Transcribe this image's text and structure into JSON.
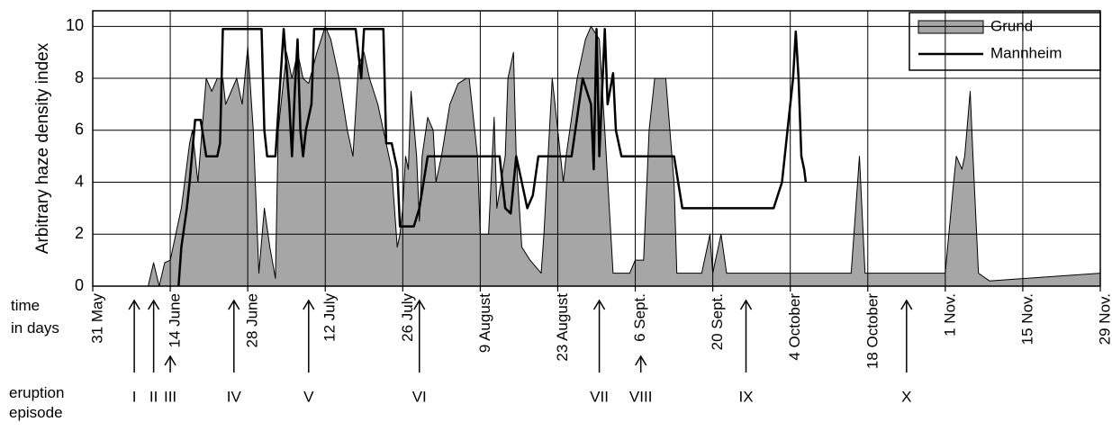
{
  "chart_data": {
    "type": "area_line",
    "ylabel": "Arbitrary haze density index",
    "xlabel": "time in days",
    "xlim": [
      0,
      182
    ],
    "ylim": [
      0,
      10.6
    ],
    "yticks": [
      0,
      2,
      4,
      6,
      8,
      10
    ],
    "xticks": [
      {
        "value": 0,
        "label": "31 May"
      },
      {
        "value": 14,
        "label": "14 June"
      },
      {
        "value": 28,
        "label": "28 June"
      },
      {
        "value": 42,
        "label": "12 July"
      },
      {
        "value": 56,
        "label": "26 July"
      },
      {
        "value": 70,
        "label": "9 August"
      },
      {
        "value": 84,
        "label": "23 August"
      },
      {
        "value": 98,
        "label": "6 Sept."
      },
      {
        "value": 112,
        "label": "20 Sept."
      },
      {
        "value": 126,
        "label": "4 October"
      },
      {
        "value": 140,
        "label": "18 October"
      },
      {
        "value": 154,
        "label": "1 Nov."
      },
      {
        "value": 168,
        "label": "15 Nov."
      },
      {
        "value": 182,
        "label": "29 Nov."
      }
    ],
    "grid": true,
    "legend": "upper right",
    "series": [
      {
        "name": "Grund",
        "color": "#a6a6a6",
        "style": "area",
        "x": [
          10,
          11,
          12,
          13,
          14,
          16,
          17.5,
          18,
          19,
          20.5,
          21.5,
          22.5,
          23.5,
          24,
          26,
          27,
          28,
          29,
          30,
          31,
          32,
          33,
          33.5,
          35,
          36,
          37,
          38,
          39,
          40.5,
          42,
          43,
          44.5,
          46,
          47,
          48,
          49,
          50,
          51.5,
          53,
          54,
          55,
          55.5,
          56,
          56.5,
          57,
          57.5,
          58.5,
          59,
          59.5,
          60.5,
          61.5,
          62,
          63,
          64.5,
          66,
          67.5,
          68,
          69.5,
          70,
          71.5,
          72.5,
          73,
          74.5,
          75,
          76,
          76.5,
          77.5,
          79,
          81,
          81.5,
          83,
          84,
          85,
          85.5,
          87.5,
          89,
          90,
          91.5,
          92.5,
          94,
          97,
          98,
          99.5,
          100.5,
          101.5,
          103.5,
          105,
          105.5,
          110,
          111.5,
          112,
          113.5,
          114.5,
          130,
          137,
          137.5,
          138.5,
          139.5,
          146,
          154,
          155.5,
          156,
          157,
          157.5,
          158.5,
          159,
          160,
          162,
          182
        ],
        "values": [
          0,
          0.9,
          0,
          0.9,
          1,
          3,
          5.5,
          6,
          4,
          8,
          7.5,
          8,
          8,
          7,
          8,
          7,
          9.2,
          6,
          0.5,
          3,
          1.5,
          0.3,
          6,
          9,
          8,
          9,
          8,
          7.8,
          9,
          10,
          9.5,
          8,
          6,
          5,
          8.5,
          9,
          8,
          7,
          5.5,
          4.5,
          1.5,
          2,
          3,
          5,
          4.5,
          7.5,
          5,
          2.5,
          5,
          6.5,
          6,
          4,
          5,
          7,
          7.8,
          8,
          8,
          5,
          2,
          2,
          6.5,
          3,
          5,
          8,
          9,
          5,
          1.5,
          1,
          0.5,
          2,
          8,
          6,
          4,
          5,
          8,
          9.5,
          10,
          9.5,
          6,
          0.5,
          0.5,
          1,
          1,
          6,
          8,
          8,
          4,
          0.5,
          0.5,
          2,
          0.5,
          2,
          0.5,
          0.5,
          0.5,
          2,
          5,
          0.5,
          0.5,
          0.5,
          4,
          5,
          4.5,
          5,
          7.5,
          5,
          0.5,
          0.2,
          0.5
        ]
      },
      {
        "name": "Mannheim",
        "color": "#000000",
        "style": "line",
        "x": [
          15.5,
          16,
          17,
          17.5,
          18.5,
          19.5,
          20.5,
          22.5,
          23,
          23.5,
          30.5,
          31,
          31.5,
          33,
          34.5,
          35.5,
          36,
          36.5,
          37,
          37.5,
          38,
          38.5,
          39.5,
          40,
          47.5,
          48.5,
          49,
          52.5,
          53,
          54,
          55,
          55.5,
          58,
          59,
          60.5,
          73.5,
          74.5,
          75.5,
          76.5,
          77.5,
          78.5,
          79.5,
          80.5,
          86.5,
          87.5,
          88.5,
          90,
          90.5,
          91,
          91.5,
          92.5,
          93,
          94,
          94.5,
          95.5,
          105,
          106.5,
          123,
          124.5,
          125.5,
          126.5,
          127,
          127.5,
          128,
          128.5,
          128.8
        ],
        "values": [
          0,
          1.5,
          3,
          4,
          6.4,
          6.4,
          5,
          5,
          5.5,
          9.9,
          9.9,
          6,
          5,
          5,
          9.9,
          7,
          5,
          7.5,
          9.5,
          6,
          5,
          6,
          7,
          9.9,
          9.9,
          8,
          9.9,
          9.9,
          5.5,
          5.5,
          4.5,
          2.3,
          2.3,
          3,
          5,
          5,
          3,
          2.8,
          5,
          4,
          3,
          3.5,
          5,
          5,
          6.5,
          8,
          7,
          4.5,
          9.9,
          5,
          9.9,
          7,
          8.2,
          6,
          5,
          5,
          3,
          3,
          4,
          6,
          8,
          9.8,
          8,
          5,
          4.5,
          4
        ]
      }
    ],
    "eruption_episodes": {
      "label": "eruption episode",
      "names": [
        "I",
        "II",
        "III",
        "IV",
        "V",
        "VI",
        "VII",
        "VIII",
        "IX",
        "X"
      ],
      "x": [
        7.5,
        11,
        14,
        25.5,
        39,
        59,
        91.5,
        99,
        118,
        147
      ]
    }
  }
}
